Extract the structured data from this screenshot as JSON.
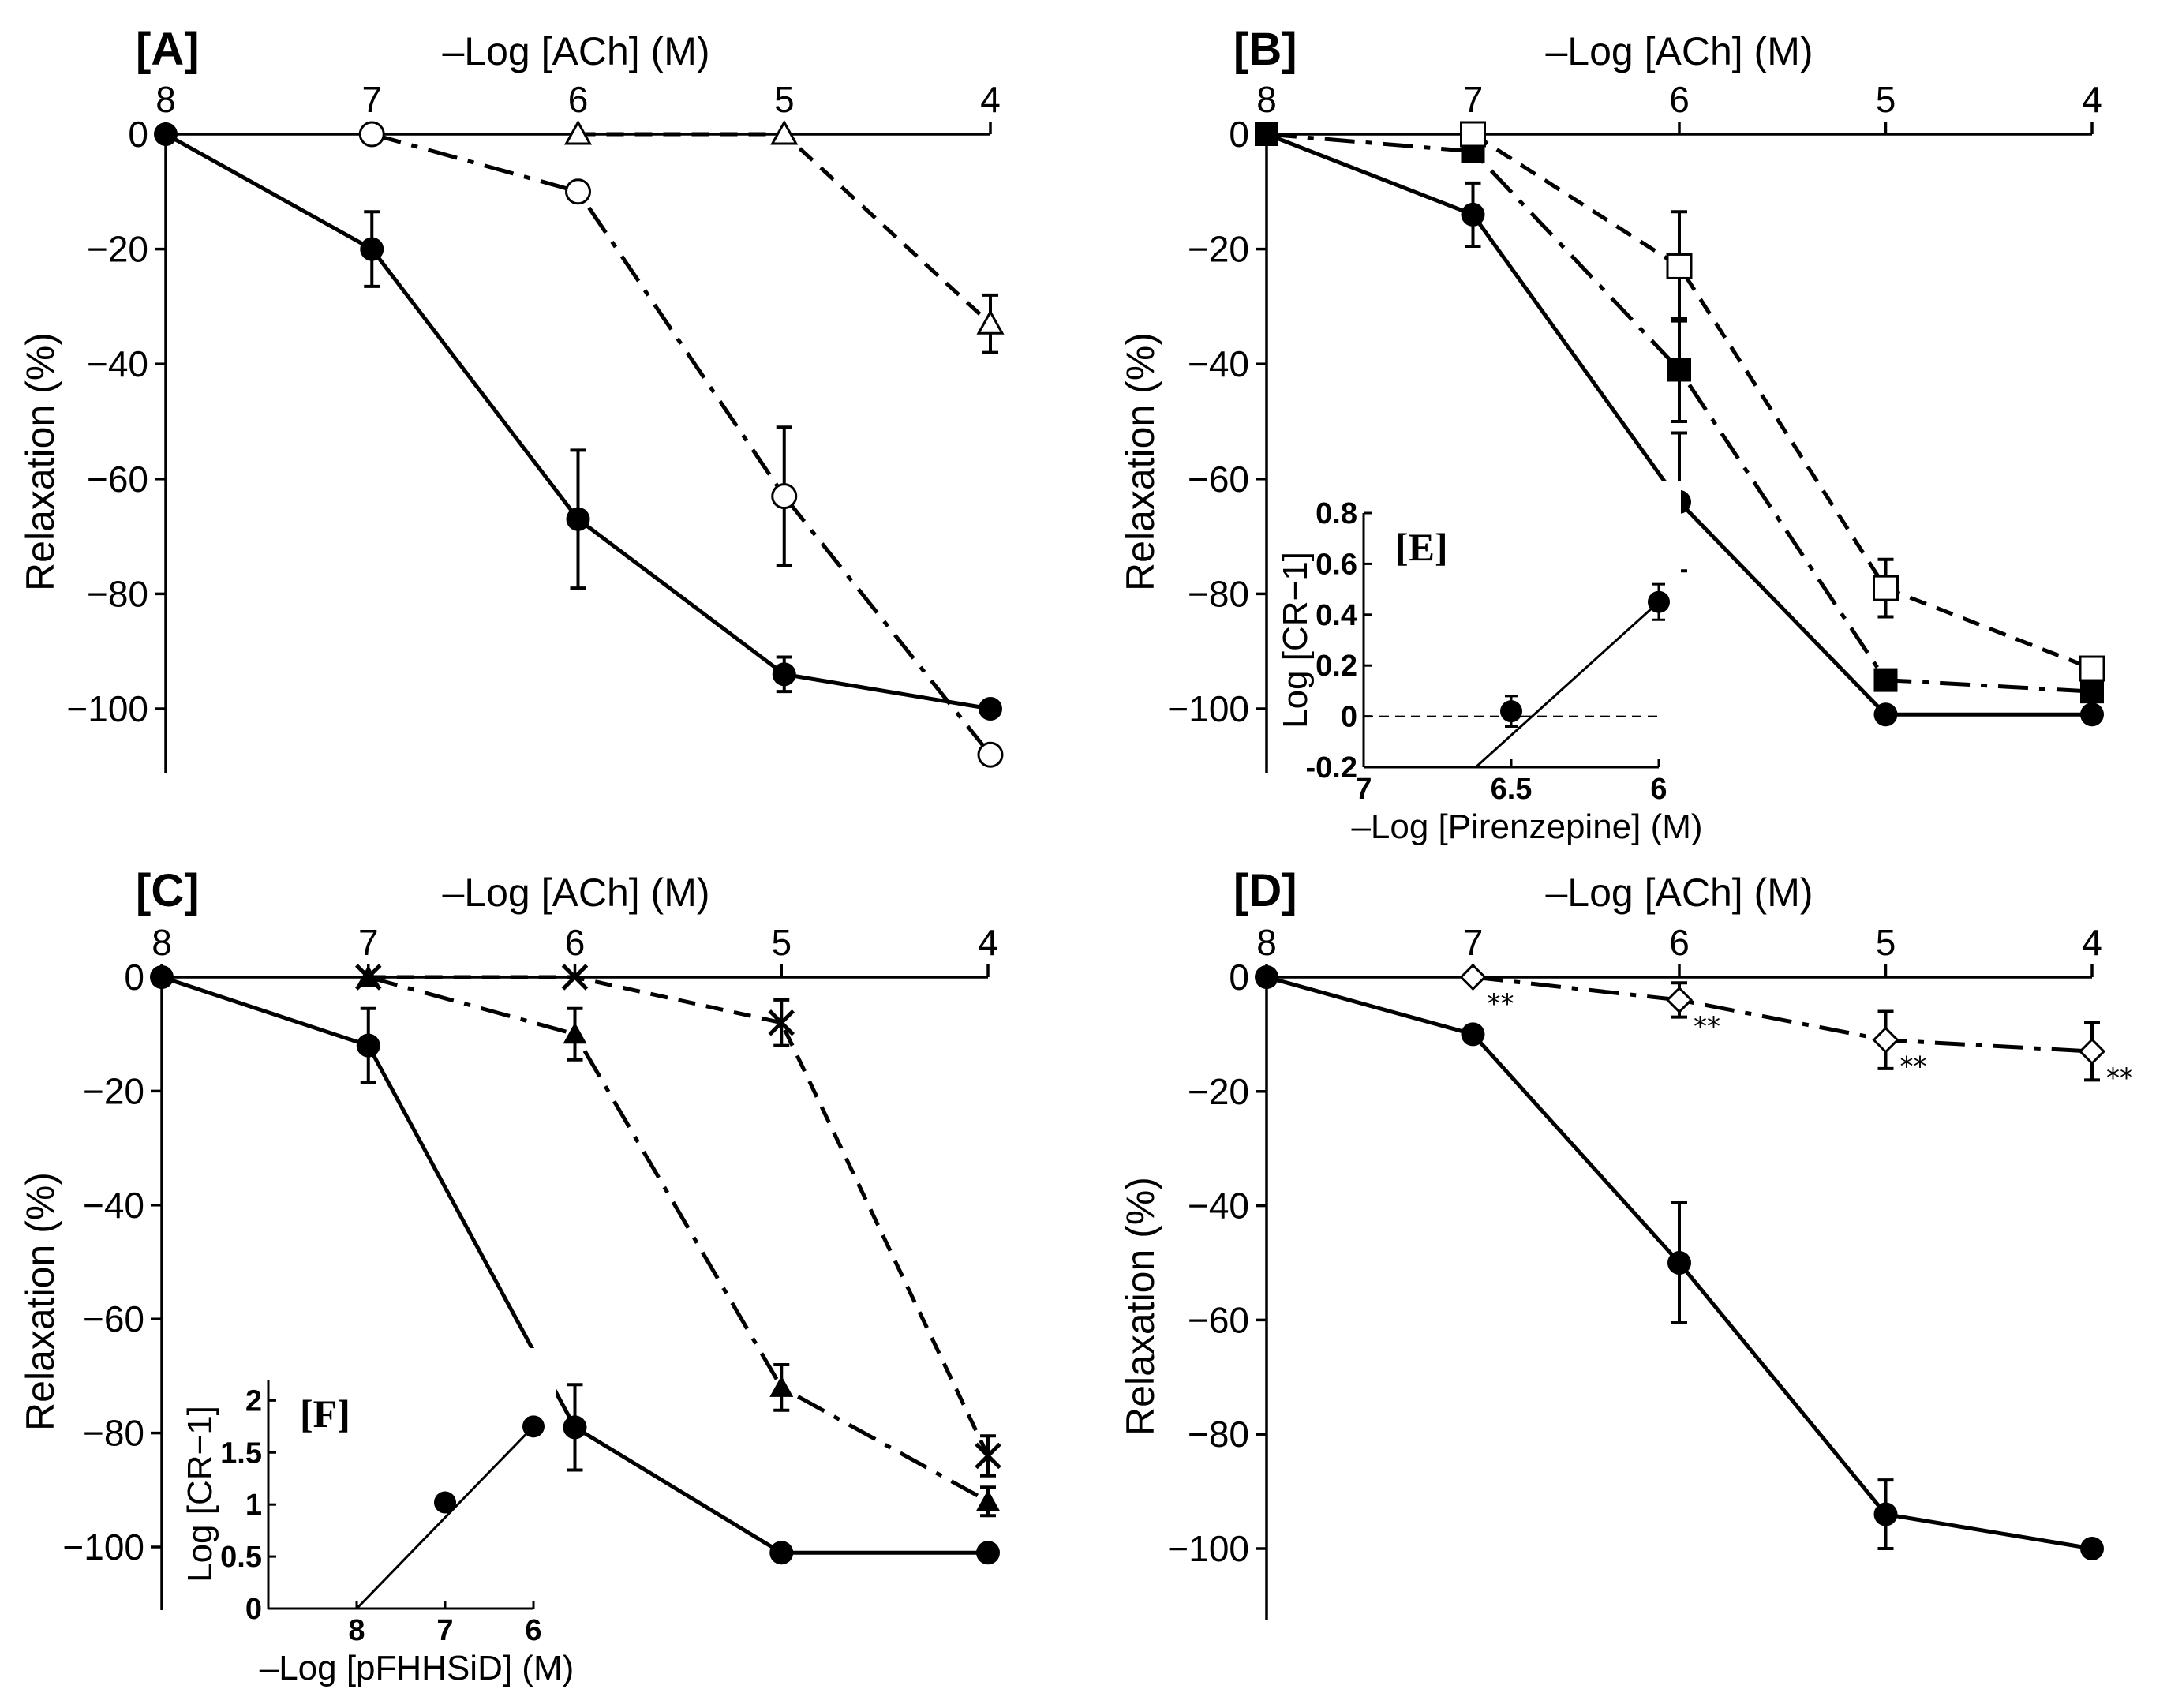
{
  "chart_data": [
    {
      "panel": "[A]",
      "type": "line",
      "title": "",
      "xlabel": "–Log [ACh] (M)",
      "ylabel": "Relaxation (%)",
      "x_ticks": [
        "8",
        "7",
        "6",
        "5",
        "4"
      ],
      "y_ticks": [
        "0",
        "−20",
        "−40",
        "−60",
        "−80",
        "−100"
      ],
      "xlim": [
        8,
        4
      ],
      "ylim": [
        -112,
        0
      ],
      "series": [
        {
          "name": "filled circle",
          "marker": "circle-filled",
          "dash": "solid",
          "x": [
            8,
            7,
            6,
            5,
            4
          ],
          "y": [
            0,
            -20,
            -67,
            -94,
            -100
          ],
          "err": [
            0,
            6.5,
            12,
            3,
            0
          ]
        },
        {
          "name": "open circle",
          "marker": "circle-open",
          "dash": "dashdot",
          "x": [
            7,
            6,
            5,
            4
          ],
          "y": [
            0,
            -10,
            -63,
            -108
          ],
          "err": [
            0,
            0,
            12,
            1.5
          ]
        },
        {
          "name": "open triangle",
          "marker": "triangle-open",
          "dash": "dashed",
          "x": [
            6,
            5,
            4
          ],
          "y": [
            0,
            0,
            -33
          ],
          "err": [
            0,
            0,
            5
          ]
        }
      ]
    },
    {
      "panel": "[B]",
      "type": "line",
      "title": "",
      "xlabel": "–Log [ACh] (M)",
      "ylabel": "Relaxation (%)",
      "x_ticks": [
        "8",
        "7",
        "6",
        "5",
        "4"
      ],
      "y_ticks": [
        "0",
        "−20",
        "−40",
        "−60",
        "−80",
        "−100"
      ],
      "xlim": [
        8,
        4
      ],
      "ylim": [
        -112,
        0
      ],
      "series": [
        {
          "name": "filled circle",
          "marker": "circle-filled",
          "dash": "solid",
          "x": [
            8,
            7,
            6,
            5,
            4
          ],
          "y": [
            0,
            -14,
            -64,
            -101,
            -101
          ],
          "err": [
            0,
            5.5,
            12,
            0,
            0
          ]
        },
        {
          "name": "filled square",
          "marker": "square-filled",
          "dash": "dashdot",
          "x": [
            8,
            7,
            6,
            5,
            4
          ],
          "y": [
            0,
            -3,
            -41,
            -95,
            -97
          ],
          "err": [
            0,
            0,
            9,
            0,
            0
          ]
        },
        {
          "name": "open square",
          "marker": "square-open",
          "dash": "dashed",
          "x": [
            7,
            6,
            5,
            4
          ],
          "y": [
            0,
            -23,
            -79,
            -93
          ],
          "err": [
            0,
            9.5,
            5,
            0
          ]
        }
      ],
      "inset": {
        "label": "[E]",
        "type": "line",
        "xlabel": "–Log [Pirenzepine] (M)",
        "ylabel": "Log [CR−1]",
        "x_ticks": [
          "7",
          "6.5",
          "6"
        ],
        "y_ticks": [
          "-0.2",
          "0",
          "0.2",
          "0.4",
          "0.6",
          "0.8"
        ],
        "xlim": [
          7,
          6
        ],
        "ylim": [
          -0.2,
          0.8
        ],
        "x": [
          6.5,
          6
        ],
        "y": [
          0.02,
          0.45
        ],
        "err": [
          0.06,
          0.07
        ],
        "fit_x": [
          6.62,
          6.0
        ],
        "fit_y": [
          -0.2,
          0.45
        ],
        "reference_line_y": 0
      }
    },
    {
      "panel": "[C]",
      "type": "line",
      "title": "",
      "xlabel": "–Log [ACh] (M)",
      "ylabel": "Relaxation (%)",
      "x_ticks": [
        "8",
        "7",
        "6",
        "5",
        "4"
      ],
      "y_ticks": [
        "0",
        "−20",
        "−40",
        "−60",
        "−80",
        "−100"
      ],
      "xlim": [
        8,
        4
      ],
      "ylim": [
        -112,
        0
      ],
      "series": [
        {
          "name": "filled circle",
          "marker": "circle-filled",
          "dash": "solid",
          "x": [
            8,
            7,
            6,
            5,
            4
          ],
          "y": [
            0,
            -12,
            -79,
            -101,
            -101
          ],
          "err": [
            0,
            6.5,
            7.5,
            0,
            0
          ]
        },
        {
          "name": "filled triangle",
          "marker": "triangle-filled",
          "dash": "dashdot",
          "x": [
            7,
            6,
            5,
            4
          ],
          "y": [
            0,
            -10,
            -72,
            -92
          ],
          "err": [
            0,
            4.5,
            4,
            2.5
          ]
        },
        {
          "name": "cross",
          "marker": "cross",
          "dash": "dashed",
          "x": [
            7,
            6,
            5,
            4
          ],
          "y": [
            0,
            0,
            -8,
            -84
          ],
          "err": [
            0,
            0,
            4,
            3.5
          ]
        }
      ],
      "inset": {
        "label": "[F]",
        "type": "line",
        "xlabel": "–Log [pFHHSiD] (M)",
        "ylabel": "Log [CR−1]",
        "x_ticks": [
          "8",
          "7",
          "6"
        ],
        "y_ticks": [
          "0",
          "0.5",
          "1",
          "1.5",
          "2"
        ],
        "xlim": [
          9,
          6
        ],
        "ylim": [
          0,
          2.2
        ],
        "x": [
          7,
          6
        ],
        "y": [
          1.02,
          1.75
        ],
        "err": [
          0.05,
          0.08
        ],
        "fit_x": [
          8.0,
          6.0
        ],
        "fit_y": [
          0.0,
          1.75
        ]
      }
    },
    {
      "panel": "[D]",
      "type": "line",
      "title": "",
      "xlabel": "–Log [ACh] (M)",
      "ylabel": "Relaxation (%)",
      "x_ticks": [
        "8",
        "7",
        "6",
        "5",
        "4"
      ],
      "y_ticks": [
        "0",
        "−20",
        "−40",
        "−60",
        "−80",
        "−100"
      ],
      "xlim": [
        8,
        4
      ],
      "ylim": [
        -112,
        0
      ],
      "series": [
        {
          "name": "filled circle",
          "marker": "circle-filled",
          "dash": "solid",
          "x": [
            8,
            7,
            6,
            5,
            4
          ],
          "y": [
            0,
            -10,
            -50,
            -94,
            -100
          ],
          "err": [
            0,
            0,
            10.5,
            6,
            0
          ]
        },
        {
          "name": "open diamond",
          "marker": "diamond-open",
          "dash": "dashdot",
          "x": [
            7,
            6,
            5,
            4
          ],
          "y": [
            0,
            -4,
            -11,
            -13
          ],
          "err": [
            0,
            3,
            5,
            5
          ]
        }
      ],
      "annotations": [
        "**",
        "**",
        "**",
        "**"
      ]
    }
  ]
}
